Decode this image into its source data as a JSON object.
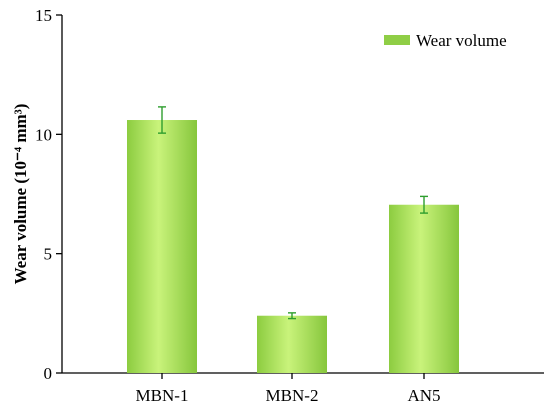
{
  "chart_data": {
    "type": "bar",
    "categories": [
      "MBN-1",
      "MBN-2",
      "AN5"
    ],
    "series": [
      {
        "name": "Wear volume",
        "values": [
          10.6,
          2.4,
          7.05
        ],
        "errors": [
          0.55,
          0.12,
          0.35
        ]
      }
    ],
    "ylabel": "Wear volume (10⁻⁴ mm³)",
    "ylim": [
      0,
      15
    ],
    "yticks": [
      "0",
      "5",
      "10",
      "15"
    ],
    "legend": "top-right",
    "grid": false,
    "colors": {
      "bar_light": "#c8f07a",
      "bar_mid": "#9bd84a",
      "bar_dark": "#7cc035",
      "error": "#2e9e2e",
      "legend_swatch": "#8fce46"
    }
  }
}
